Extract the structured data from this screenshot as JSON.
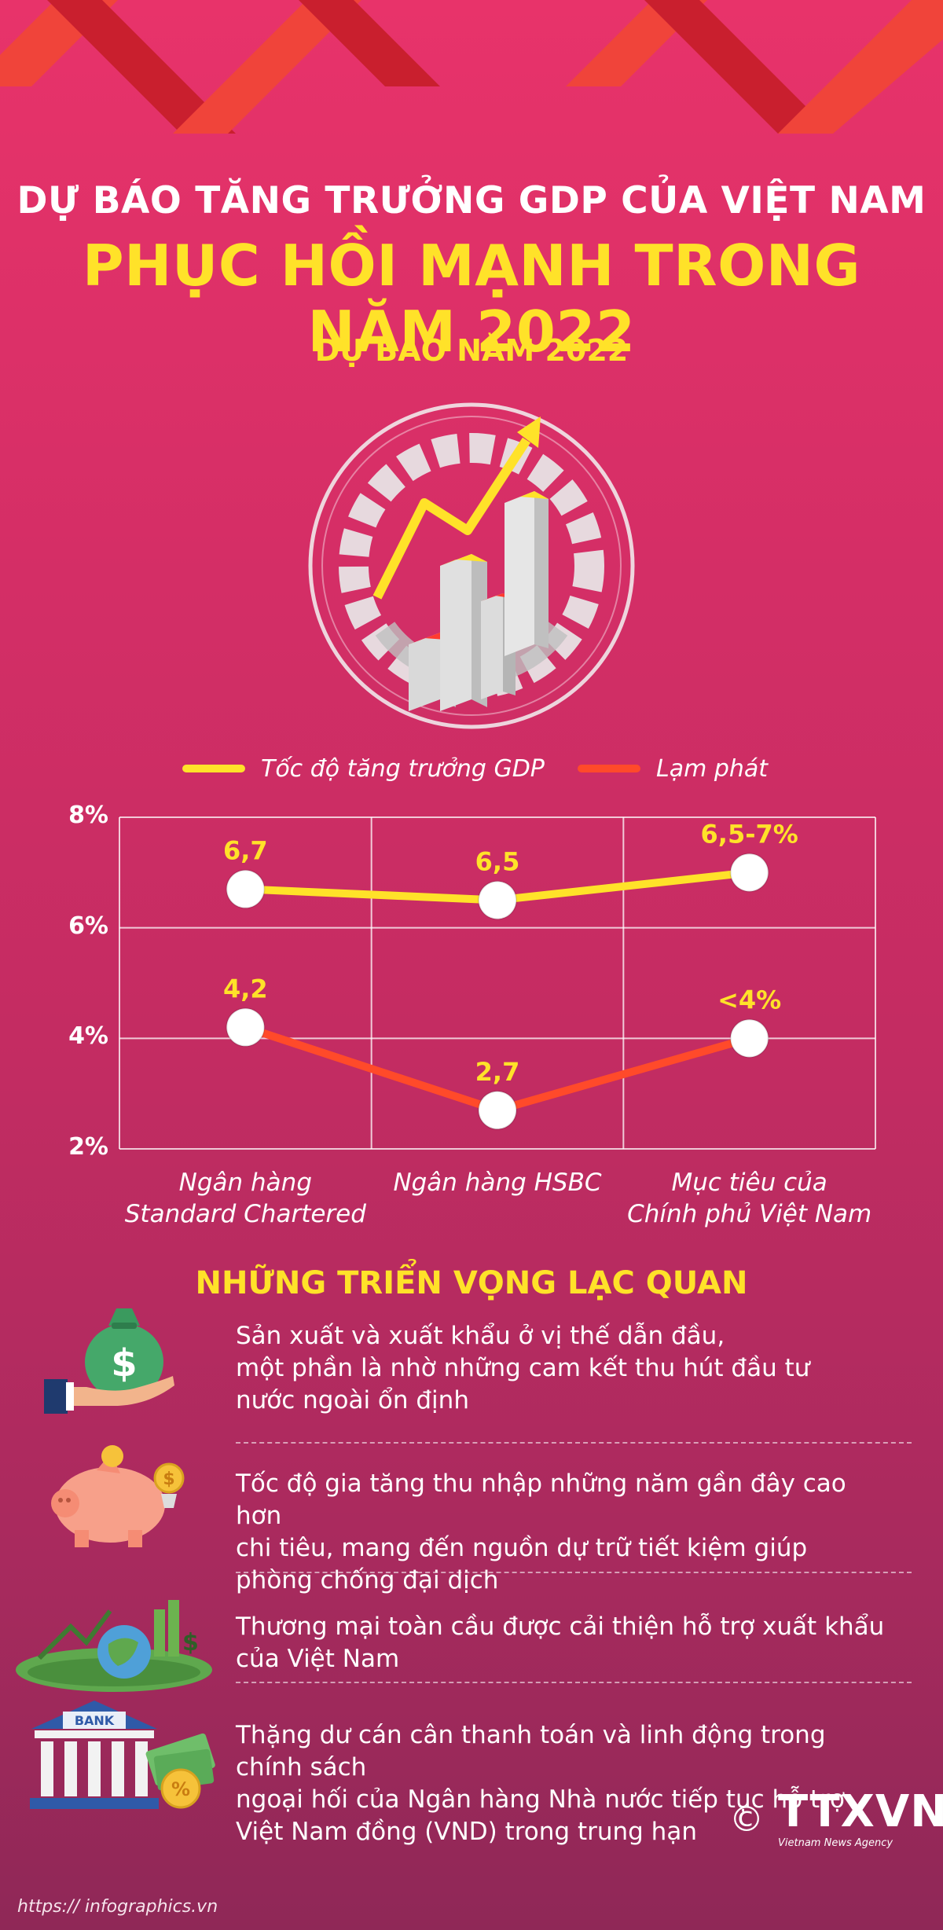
{
  "title": {
    "line1": "DỰ BÁO TĂNG TRƯỞNG GDP CỦA VIỆT NAM",
    "line2": "PHỤC HỒI MẠNH TRONG NĂM 2022"
  },
  "subtitle": "DỰ BÁO NĂM 2022",
  "colors": {
    "gdp": "#ffe229",
    "inflation": "#ff4a2a",
    "accent": "#ffe229"
  },
  "chart_data": {
    "type": "line",
    "categories": [
      [
        "Ngân hàng",
        "Standard Chartered"
      ],
      [
        "Ngân hàng HSBC"
      ],
      [
        "Mục tiêu của",
        "Chính phủ Việt Nam"
      ]
    ],
    "series": [
      {
        "name": "Tốc độ tăng trưởng GDP",
        "values": [
          6.7,
          6.5,
          7.0
        ],
        "labels": [
          "6,7",
          "6,5",
          "6,5-7%"
        ]
      },
      {
        "name": "Lạm phát",
        "values": [
          4.2,
          2.7,
          4.0
        ],
        "labels": [
          "4,2",
          "2,7",
          "<4%"
        ]
      }
    ],
    "yticks": [
      "8%",
      "6%",
      "4%",
      "2%"
    ],
    "ylim": [
      2,
      8
    ],
    "grid": true,
    "legend": "top"
  },
  "section_heading": "NHỮNG TRIỂN VỌNG LẠC QUAN",
  "points": [
    {
      "icon": "money-bag-hand-icon",
      "lines": [
        "Sản xuất và xuất khẩu ở vị thế dẫn đầu,",
        "một phần là nhờ những cam kết thu hút đầu tư",
        "nước ngoài ổn định"
      ]
    },
    {
      "icon": "piggy-bank-icon",
      "lines": [
        "Tốc độ gia tăng thu nhập những năm gần đây cao hơn",
        "chi tiêu, mang đến nguồn dự trữ tiết kiệm giúp",
        "phòng chống đại dịch"
      ]
    },
    {
      "icon": "global-trade-icon",
      "lines": [
        "Thương mại toàn cầu được cải thiện hỗ trợ xuất khẩu",
        "của Việt Nam"
      ]
    },
    {
      "icon": "bank-icon",
      "lines": [
        "Thặng dư cán cân thanh toán và linh động trong chính sách",
        "ngoại hối của Ngân hàng Nhà nước tiếp tục hỗ trợ",
        "Việt Nam đồng (VND) trong trung hạn"
      ]
    }
  ],
  "bank_sign": "BANK",
  "credit": {
    "copyright": "©",
    "logo": "TTXVN",
    "logo_sub": "Vietnam News Agency"
  },
  "footer_url": "https:// infographics.vn"
}
